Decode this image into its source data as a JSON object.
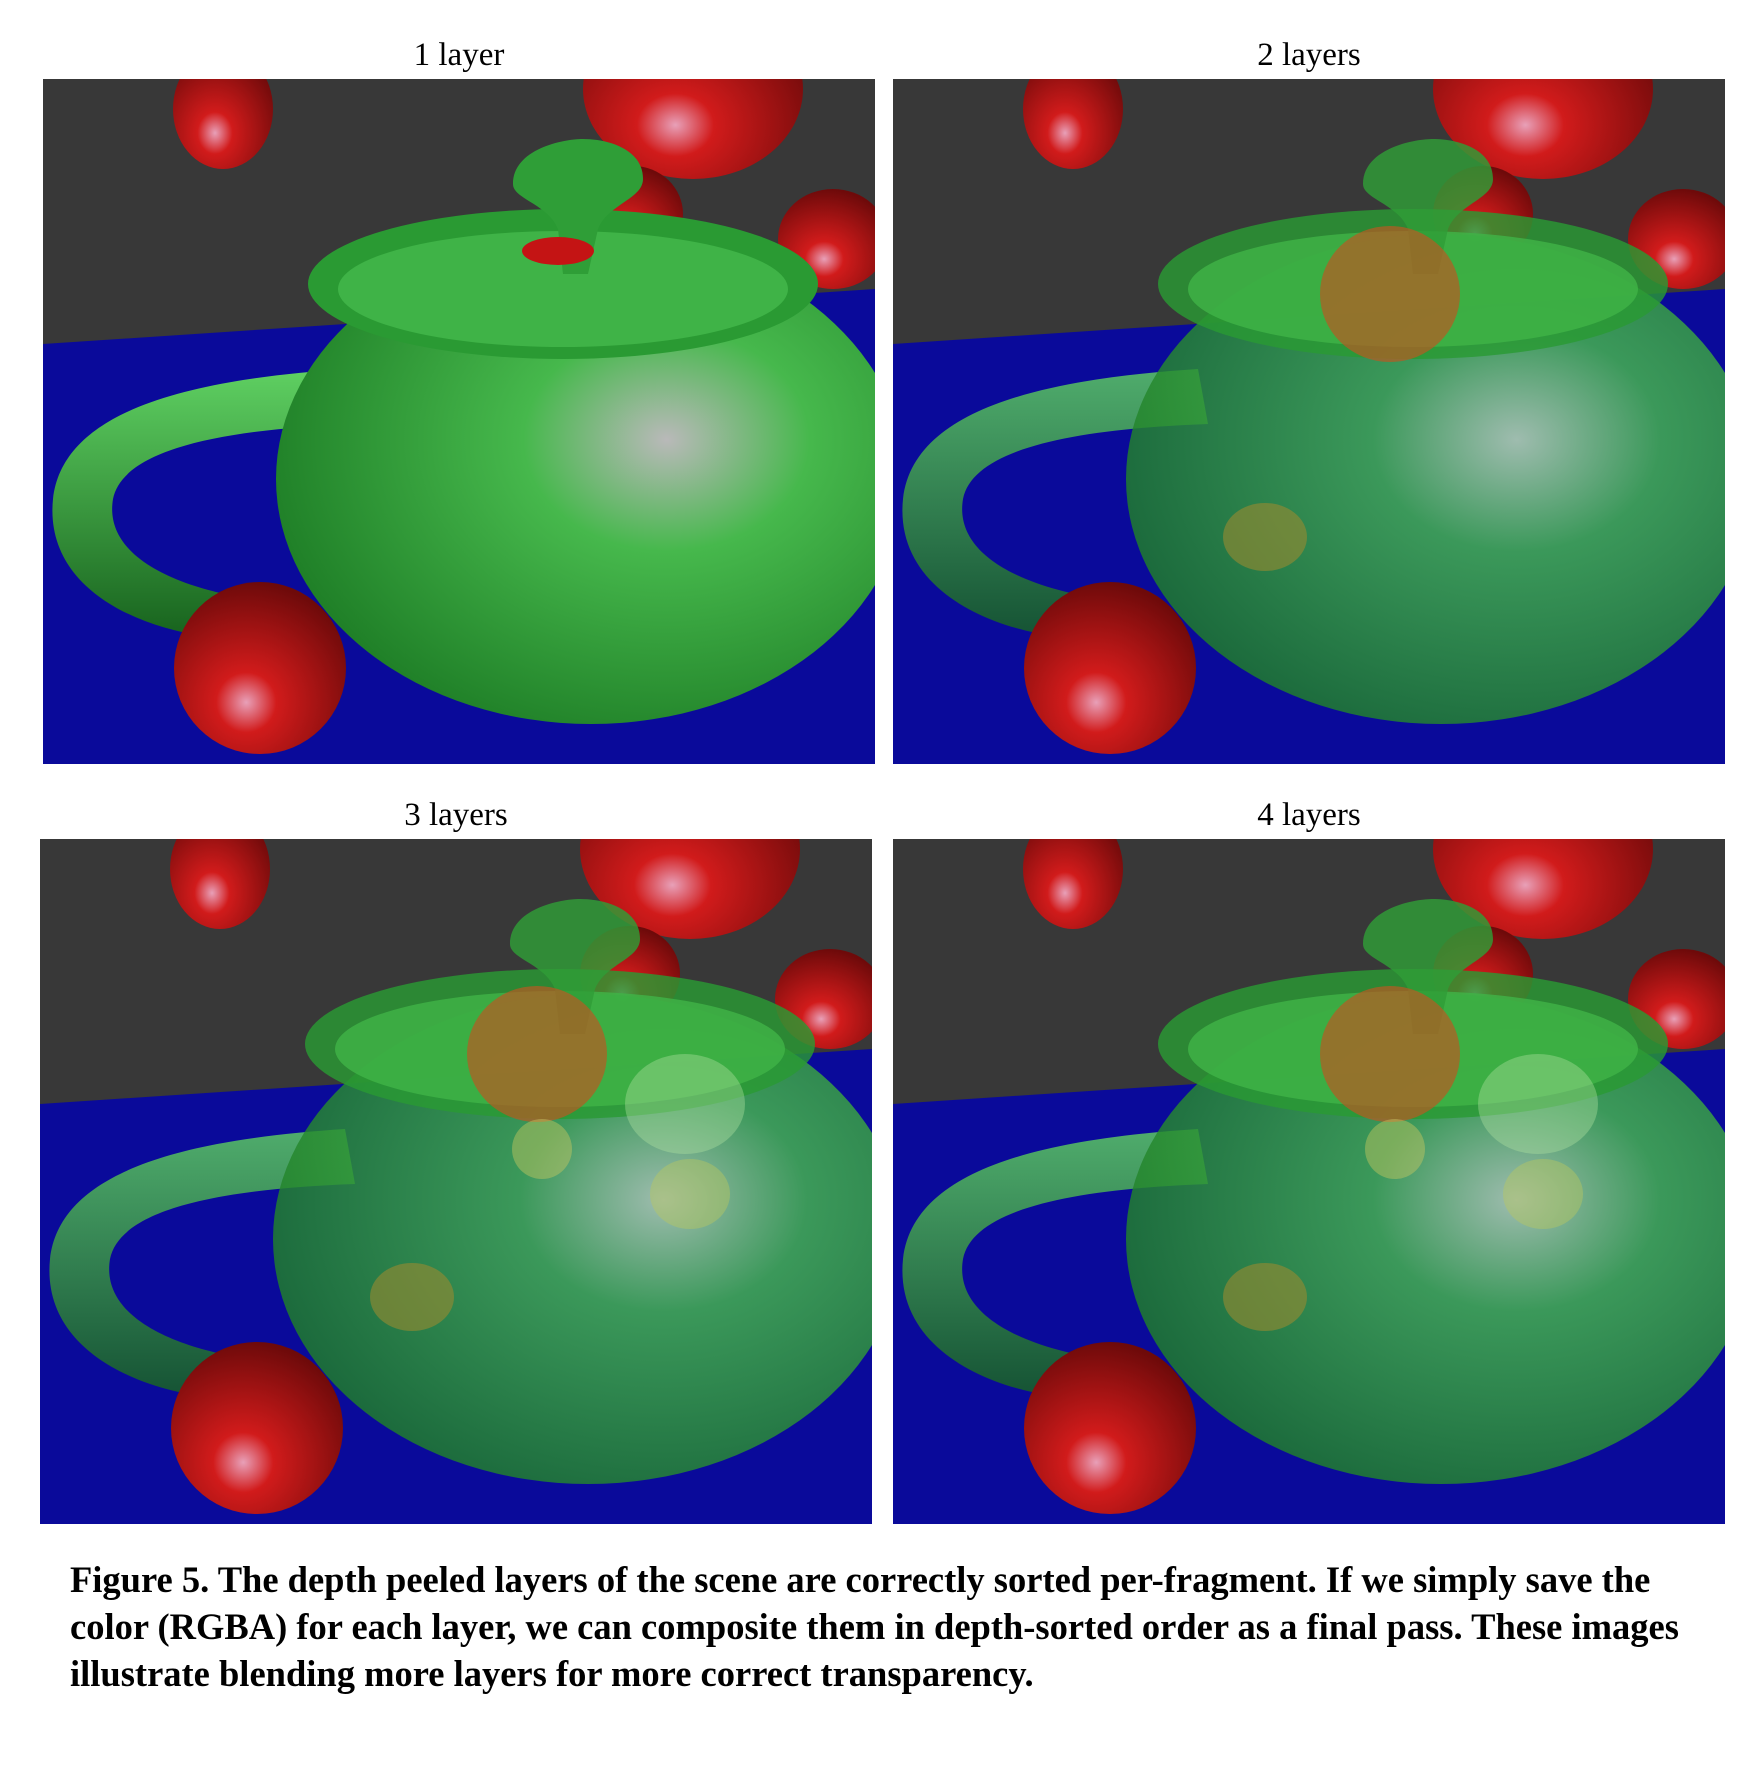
{
  "panels": [
    {
      "id": "p1",
      "title": "1 layer",
      "layers": 1,
      "image_alt": "Teapot rendered with 1 depth-peeled layer"
    },
    {
      "id": "p2",
      "title": "2 layers",
      "layers": 2,
      "image_alt": "Teapot rendered with 2 depth-peeled layers"
    },
    {
      "id": "p3",
      "title": "3 layers",
      "layers": 3,
      "image_alt": "Teapot rendered with 3 depth-peeled layers"
    },
    {
      "id": "p4",
      "title": "4 layers",
      "layers": 4,
      "image_alt": "Teapot rendered with 4 depth-peeled layers"
    }
  ],
  "caption": "Figure 5.  The depth peeled layers of the scene are correctly sorted per-fragment.  If we simply save the color (RGBA) for each layer, we can composite them in depth-sorted order as a final pass.  These images illustrate blending more layers for more correct transparency.",
  "colors": {
    "background_wall": "#383838",
    "floor": "#0a0a9a",
    "teapot": "#2fae3a",
    "spheres": "#c81414"
  }
}
